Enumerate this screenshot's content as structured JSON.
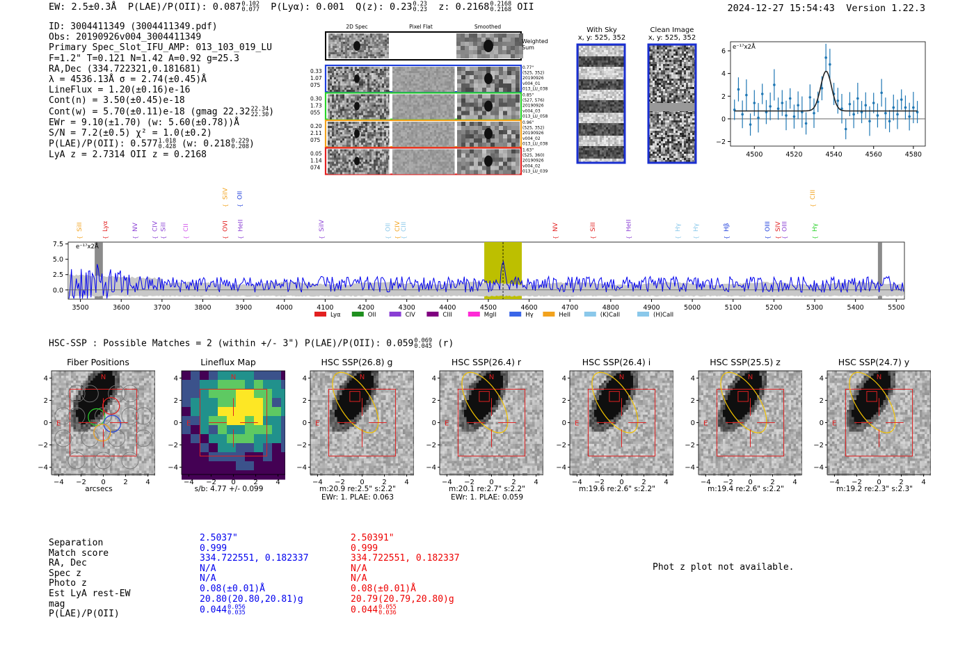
{
  "header": {
    "ew": "EW: 2.5±0.3Å",
    "plae_label": "P(LAE)/P(OII): 0.087",
    "plae_hi": "0.102",
    "plae_lo": "0.077",
    "plya": "P(Lyα): 0.001",
    "qz_label": "Q(z): 0.23",
    "qz_hi": "0.23",
    "qz_lo": "0.23",
    "z_label": "z: 0.2168",
    "z_hi": "0.2168",
    "z_lo": "0.2168",
    "z_line": "OII",
    "timestamp": "2024-12-27 15:54:43",
    "version": "Version 1.22.3"
  },
  "info": {
    "id": "ID: 3004411349 (3004411349.pdf)",
    "obs": "Obs: 20190926v004_3004411349",
    "primary": "Primary Spec_Slot_IFU_AMP: 013_103_019_LU",
    "fwhm": "F=1.2\"  T=0.121  N=1.42  A=0.92  g=25.3",
    "radec": "RA,Dec (334.722321,0.181681)",
    "lambda": "λ = 4536.13Å  σ = 2.74(±0.45)Å",
    "lineflux": "LineFlux = 1.20(±0.16)e-16",
    "contn": "Cont(n) = 3.50(±0.45)e-18",
    "contw": "Cont(w) = 5.70(±0.11)e-18 (gmag 22.32",
    "contw_hi": "22.34",
    "contw_lo": "22.30",
    "contw_close": ")",
    "ewr": "EWr = 9.10(±1.70) (w: 5.60(±0.78))Å",
    "sn": "S/N = 7.2(±0.5)  χ² = 1.0(±0.2)",
    "plae": "P(LAE)/P(OII): 0.577",
    "plae_hi": "1.018",
    "plae_lo": "0.428",
    "plae_w": "(w: 0.218",
    "plae_w_hi": "0.229",
    "plae_w_lo": "0.208",
    "plae_w_close": ")",
    "lyaz": "LyA z = 2.7314  OII z = 0.2168"
  },
  "cutouts": {
    "headers": [
      "2D Spec",
      "Pixel Flat",
      "Smoothed"
    ],
    "weighted": "Weighted\nSum",
    "rows": [
      {
        "left": [
          "0.33",
          "1.07",
          "075"
        ],
        "right": [
          "0.77\"",
          "(525, 352)",
          "20190926",
          "v004_01",
          "013_LU_038"
        ],
        "color": "#1f3fdc"
      },
      {
        "left": [
          "0.30",
          "1.73",
          "055"
        ],
        "right": [
          "0.85\"",
          "(527, 576)",
          "20190926",
          "v004_03",
          "013_LU_058"
        ],
        "color": "#2ad12a"
      },
      {
        "left": [
          "0.20",
          "2.11",
          "075"
        ],
        "right": [
          "0.96\"",
          "(525, 352)",
          "20190926",
          "v004_02",
          "013_LU_038"
        ],
        "color": "#f2a21c"
      },
      {
        "left": [
          "0.05",
          "1.14",
          "074"
        ],
        "right": [
          "1.63\"",
          "(525, 360)",
          "20190926",
          "v004_02",
          "013_LU_039"
        ],
        "color": "#e22020"
      }
    ]
  },
  "sky": {
    "with_sky_title": "With Sky",
    "with_sky_coords": "x, y: 525, 352",
    "clean_title": "Clean Image",
    "clean_coords": "x, y: 525, 352"
  },
  "zoom_chart": {
    "type": "line",
    "ylabel": "e⁻¹⁷x2Å",
    "xlim": [
      4488,
      4586
    ],
    "ylim": [
      -2.4,
      6.8
    ],
    "xticks": [
      4500,
      4520,
      4540,
      4560,
      4580
    ],
    "yticks": [
      -2,
      0,
      2,
      4,
      6
    ],
    "x": [
      4490,
      4492,
      4494,
      4496,
      4498,
      4500,
      4502,
      4504,
      4506,
      4508,
      4510,
      4512,
      4514,
      4516,
      4518,
      4520,
      4522,
      4524,
      4526,
      4528,
      4530,
      4532,
      4534,
      4536,
      4538,
      4540,
      4542,
      4544,
      4546,
      4548,
      4550,
      4552,
      4554,
      4556,
      4558,
      4560,
      4562,
      4564,
      4566,
      4568,
      4570,
      4572,
      4574,
      4576,
      4578,
      4580,
      4582
    ],
    "y": [
      0.8,
      2.6,
      0.4,
      2.1,
      -0.5,
      1.4,
      0.1,
      2.2,
      0.6,
      1.1,
      3.0,
      0.9,
      1.4,
      0.3,
      1.8,
      0.2,
      1.2,
      0.6,
      -0.4,
      1.9,
      0.5,
      1.5,
      2.7,
      5.4,
      4.8,
      2.2,
      1.6,
      0.9,
      -0.9,
      1.3,
      0.4,
      1.8,
      0.6,
      1.2,
      -0.2,
      1.4,
      0.3,
      2.3,
      0.5,
      -0.2,
      1.0,
      0.4,
      1.7,
      1.0,
      0.2,
      1.0,
      0.6
    ],
    "fit_base": 0.7,
    "fit_amp": 3.5,
    "fit_center": 4536.1,
    "fit_sigma": 2.74
  },
  "full_spectrum": {
    "type": "line",
    "ylabel": "e⁻¹⁷x2Å",
    "xlim": [
      3470,
      5520
    ],
    "ylim": [
      -1.5,
      7.8
    ],
    "xticks": [
      3500,
      3600,
      3700,
      3800,
      3900,
      4000,
      4100,
      4200,
      4300,
      4400,
      4500,
      4600,
      4700,
      4800,
      4900,
      5000,
      5100,
      5200,
      5300,
      5400,
      5500
    ],
    "yticks": [
      0.0,
      2.5,
      5.0,
      7.5
    ],
    "highlight_range": [
      4490,
      4582
    ],
    "emission_peak": 4536,
    "masked": [
      [
        3535,
        3555
      ],
      [
        5455,
        5465
      ]
    ],
    "line_labels": [
      {
        "name": "SiII",
        "w": 3497,
        "color": "#f2a21c",
        "row": 0
      },
      {
        "name": "Lyα",
        "w": 3560,
        "color": "#e22020",
        "row": 0
      },
      {
        "name": "NV",
        "w": 3634,
        "color": "#8a3fd4",
        "row": 0
      },
      {
        "name": "CIV",
        "w": 3682,
        "color": "#8a3fd4",
        "row": 0
      },
      {
        "name": "SiII",
        "w": 3703,
        "color": "#8a3fd4",
        "row": 0
      },
      {
        "name": "CII",
        "w": 3758,
        "color": "#d050ea",
        "row": 0
      },
      {
        "name": "OVI",
        "w": 3855,
        "color": "#e22020",
        "row": 0
      },
      {
        "name": "HeII",
        "w": 3892,
        "color": "#8a3fd4",
        "row": 0
      },
      {
        "name": "SiIV",
        "w": 3855,
        "color": "#f2a21c",
        "row": 1
      },
      {
        "name": "OII",
        "w": 3890,
        "color": "#1f3fdc",
        "row": 1
      },
      {
        "name": "SiIV",
        "w": 4091,
        "color": "#8a3fd4",
        "row": 0
      },
      {
        "name": "OII",
        "w": 4254,
        "color": "#8ac8ea",
        "row": 0
      },
      {
        "name": "CIV",
        "w": 4277,
        "color": "#f2a21c",
        "row": 0
      },
      {
        "name": "CIII",
        "w": 4292,
        "color": "#8ac8ea",
        "row": 0
      },
      {
        "name": "NV",
        "w": 4664,
        "color": "#e22020",
        "row": 0
      },
      {
        "name": "SiII",
        "w": 4756,
        "color": "#e22020",
        "row": 0
      },
      {
        "name": "HeII",
        "w": 4844,
        "color": "#8a3fd4",
        "row": 0
      },
      {
        "name": "Hγ",
        "w": 4964,
        "color": "#8ac8ea",
        "row": 0
      },
      {
        "name": "Hγ",
        "w": 5008,
        "color": "#8ac8ea",
        "row": 0
      },
      {
        "name": "Hβ",
        "w": 5083,
        "color": "#1f3fdc",
        "row": 0
      },
      {
        "name": "OIII",
        "w": 5184,
        "color": "#1f3fdc",
        "row": 0
      },
      {
        "name": "SIV",
        "w": 5210,
        "color": "#e22020",
        "row": 0
      },
      {
        "name": "OIII",
        "w": 5226,
        "color": "#8a3fd4",
        "row": 0
      },
      {
        "name": "Hγ",
        "w": 5300,
        "color": "#2ad12a",
        "row": 0
      },
      {
        "name": "CIII",
        "w": 5295,
        "color": "#f2a21c",
        "row": 1
      }
    ],
    "legend": [
      {
        "name": "Lyα",
        "color": "#e22020"
      },
      {
        "name": "OII",
        "color": "#1e8f1e"
      },
      {
        "name": "CIV",
        "color": "#8a3fd4"
      },
      {
        "name": "CIII",
        "color": "#800080"
      },
      {
        "name": "MgII",
        "color": "#ff2bd6"
      },
      {
        "name": "Hγ",
        "color": "#3a66e8"
      },
      {
        "name": "HeII",
        "color": "#f2a21c"
      },
      {
        "name": "(K)CaII",
        "color": "#8ac8ea"
      },
      {
        "name": "(H)CaII",
        "color": "#8ac8ea"
      }
    ]
  },
  "matches": {
    "line_prefix": "HSC-SSP : Possible Matches = 2 (within +/- 3\")  P(LAE)/P(OII): 0.059",
    "line_hi": "0.069",
    "line_lo": "0.045",
    "line_suffix": "(r)"
  },
  "panels": [
    {
      "title": "Fiber Positions",
      "cap1": "arcsecs",
      "cap2": ""
    },
    {
      "title": "Lineflux Map",
      "cap1": "s/b: 4.77 +/- 0.099",
      "cap2": ""
    },
    {
      "title": "HSC SSP(26.8) g",
      "cap1": "m:20.9  re:2.5\"  s:2.2\"",
      "cap2": "EWr: 1. PLAE: 0.063"
    },
    {
      "title": "HSC SSP(26.4) r",
      "cap1": "m:20.1  re:2.7\"  s:2.2\"",
      "cap2": "EWr: 1. PLAE: 0.059"
    },
    {
      "title": "HSC SSP(26.4) i",
      "cap1": "m:19.6  re:2.6\"  s:2.2\"",
      "cap2": ""
    },
    {
      "title": "HSC SSP(25.5) z",
      "cap1": "m:19.4  re:2.6\"  s:2.2\"",
      "cap2": ""
    },
    {
      "title": "HSC SSP(24.7) y",
      "cap1": "m:19.2  re:2.3\"  s:2.3\"",
      "cap2": ""
    }
  ],
  "panel_axis": {
    "ticks": [
      "−4",
      "−2",
      "0",
      "2",
      "4"
    ],
    "north": "N",
    "east": "E"
  },
  "table": {
    "labels": [
      "Separation",
      "Match score",
      "RA, Dec",
      "Spec z",
      "Photo z",
      "Est LyA rest-EW",
      "mag",
      "P(LAE)/P(OII)"
    ],
    "col1": [
      "2.5037\"",
      "0.999",
      "334.722551, 0.182337",
      "N/A",
      "N/A",
      "0.08(±0.01)Å",
      "20.80(20.80,20.81)g",
      "0.044"
    ],
    "col1_plae_hi": "0.056",
    "col1_plae_lo": "0.035",
    "col2": [
      "2.50391\"",
      "0.999",
      "334.722551, 0.182337",
      "N/A",
      "N/A",
      "0.08(±0.01)Å",
      "20.79(20.79,20.80)g",
      "0.044"
    ],
    "col2_plae_hi": "0.055",
    "col2_plae_lo": "0.036",
    "photz_note": "Phot z plot not available."
  },
  "colors": {
    "spectrum": "#0000ee",
    "highlight": "#bdbf00",
    "fit": "#222222",
    "points": "#1f77b4"
  }
}
